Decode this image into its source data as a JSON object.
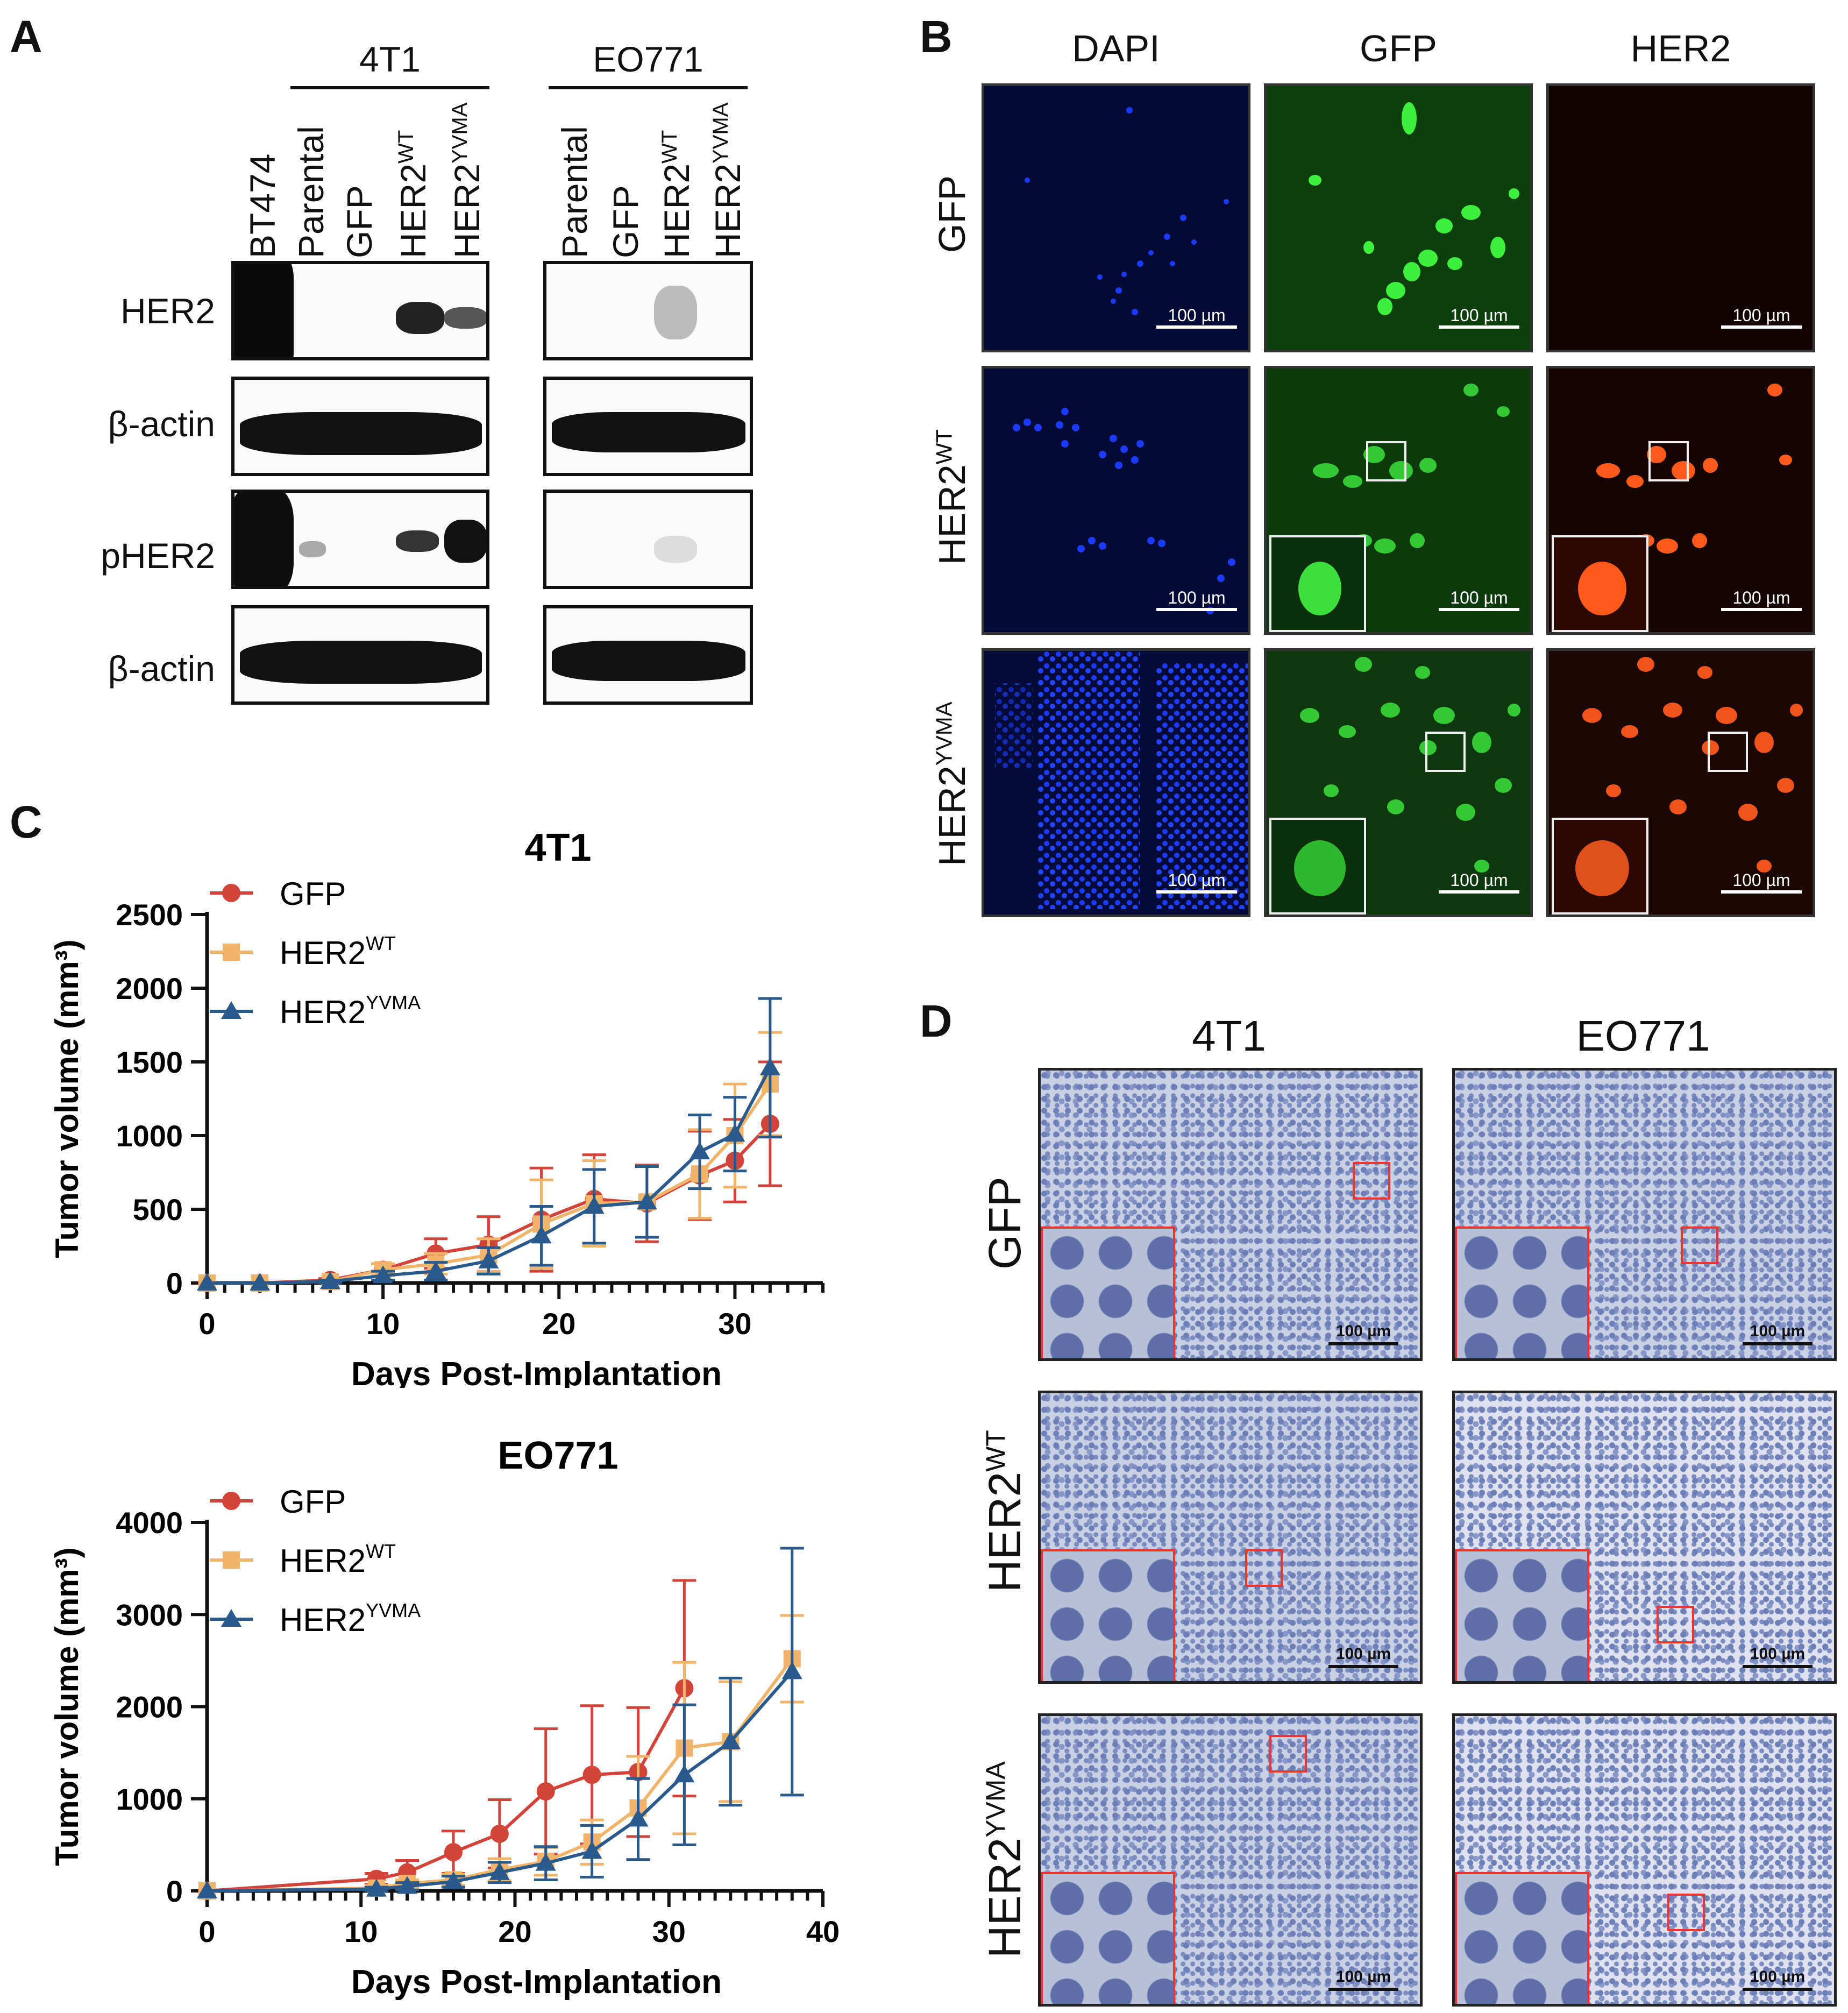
{
  "panels": {
    "a": "A",
    "b": "B",
    "c": "C",
    "d": "D"
  },
  "panelA": {
    "groups": [
      "4T1",
      "EO771"
    ],
    "lanes_left": [
      "BT474",
      "Parental",
      "GFP",
      "HER2",
      "HER2"
    ],
    "lanes_left_sup": [
      "",
      "",
      "",
      "WT",
      "YVMA"
    ],
    "lanes_right": [
      "Parental",
      "GFP",
      "HER2",
      "HER2"
    ],
    "lanes_right_sup": [
      "",
      "",
      "WT",
      "YVMA"
    ],
    "rows": [
      "HER2",
      "β-actin",
      "pHER2",
      "β-actin"
    ]
  },
  "panelB": {
    "columns": [
      "DAPI",
      "GFP",
      "HER2"
    ],
    "rows": [
      "GFP",
      "HER2",
      "HER2"
    ],
    "row_sup": [
      "",
      "WT",
      "YVMA"
    ],
    "scale": "100 µm",
    "colors": {
      "dapi": "#1020d0",
      "gfp": "#2ed02e",
      "her2": "#ff5a1a"
    }
  },
  "panelD": {
    "columns": [
      "4T1",
      "EO771"
    ],
    "rows": [
      "GFP",
      "HER2",
      "HER2"
    ],
    "row_sup": [
      "",
      "WT",
      "YVMA"
    ],
    "scale": "100 µm"
  },
  "chart_data": [
    {
      "type": "line",
      "title": "4T1",
      "xlabel": "Days Post-Implantation",
      "ylabel": "Tumor volume (mm³)",
      "xlim": [
        0,
        35
      ],
      "ylim": [
        0,
        2500
      ],
      "xticks": [
        0,
        10,
        20,
        30
      ],
      "yticks": [
        0,
        500,
        1000,
        1500,
        2000,
        2500
      ],
      "legend": "top-left",
      "series": [
        {
          "name": "GFP",
          "color": "#d2443a",
          "marker": "circle",
          "x": [
            0,
            3,
            7,
            10,
            13,
            16,
            19,
            22,
            25,
            28,
            30,
            32
          ],
          "y": [
            0,
            0,
            20,
            90,
            200,
            260,
            430,
            570,
            540,
            730,
            830,
            1080
          ],
          "err": [
            0,
            0,
            10,
            40,
            100,
            190,
            350,
            300,
            260,
            300,
            280,
            420
          ]
        },
        {
          "name": "HER2",
          "sup": "WT",
          "color": "#f0b46a",
          "marker": "square",
          "x": [
            0,
            3,
            7,
            10,
            13,
            16,
            19,
            22,
            25,
            28,
            30,
            32
          ],
          "y": [
            0,
            0,
            10,
            90,
            130,
            190,
            400,
            540,
            550,
            740,
            1000,
            1350
          ],
          "err": [
            0,
            0,
            10,
            40,
            70,
            110,
            300,
            290,
            240,
            300,
            350,
            350
          ]
        },
        {
          "name": "HER2",
          "sup": "YVMA",
          "color": "#2a5a8c",
          "marker": "triangle",
          "x": [
            0,
            3,
            7,
            10,
            13,
            16,
            19,
            22,
            25,
            28,
            30,
            32
          ],
          "y": [
            0,
            0,
            10,
            50,
            80,
            150,
            320,
            520,
            550,
            890,
            1010,
            1460
          ],
          "err": [
            0,
            0,
            10,
            30,
            60,
            90,
            200,
            250,
            240,
            250,
            250,
            470
          ]
        }
      ]
    },
    {
      "type": "line",
      "title": "EO771",
      "xlabel": "Days Post-Implantation",
      "ylabel": "Tumor volume (mm³)",
      "xlim": [
        0,
        40
      ],
      "ylim": [
        0,
        4000
      ],
      "xticks": [
        0,
        10,
        20,
        30,
        40
      ],
      "yticks": [
        0,
        1000,
        2000,
        3000,
        4000
      ],
      "legend": "top-left",
      "series": [
        {
          "name": "GFP",
          "color": "#d2443a",
          "marker": "circle",
          "x": [
            0,
            11,
            13,
            16,
            19,
            22,
            25,
            28,
            31
          ],
          "y": [
            0,
            130,
            200,
            420,
            620,
            1080,
            1260,
            1290,
            2200
          ],
          "err": [
            0,
            60,
            130,
            230,
            370,
            680,
            750,
            700,
            1170
          ]
        },
        {
          "name": "HER2",
          "sup": "WT",
          "color": "#f0b46a",
          "marker": "square",
          "x": [
            0,
            11,
            13,
            16,
            19,
            22,
            25,
            28,
            31,
            34,
            38
          ],
          "y": [
            0,
            30,
            80,
            120,
            230,
            320,
            530,
            900,
            1550,
            1620,
            2520
          ],
          "err": [
            0,
            30,
            40,
            60,
            120,
            150,
            240,
            560,
            930,
            650,
            470
          ]
        },
        {
          "name": "HER2",
          "sup": "YVMA",
          "color": "#2a5a8c",
          "marker": "triangle",
          "x": [
            0,
            11,
            13,
            16,
            19,
            22,
            25,
            28,
            31,
            34,
            38
          ],
          "y": [
            0,
            20,
            50,
            100,
            200,
            300,
            430,
            780,
            1260,
            1620,
            2380
          ],
          "err": [
            0,
            20,
            40,
            60,
            110,
            180,
            280,
            440,
            760,
            690,
            1340
          ]
        }
      ]
    }
  ]
}
